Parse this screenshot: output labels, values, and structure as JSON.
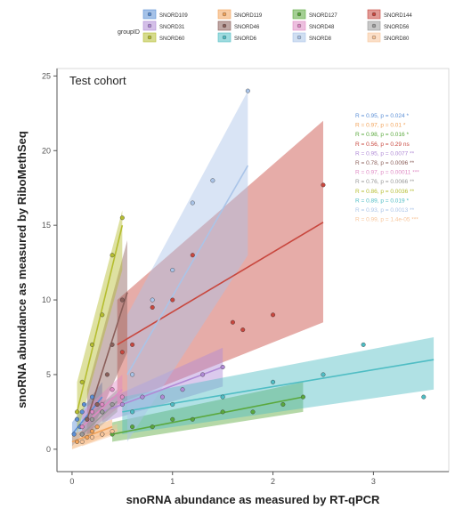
{
  "chart_data": {
    "type": "scatter",
    "annotation": "Test cohort",
    "xlabel": "snoRNA abundance as measured by RT-qPCR",
    "ylabel": "snoRNA abundance as measured by RiboMethSeq",
    "xlim": [
      -0.15,
      3.75
    ],
    "ylim": [
      -1.5,
      25.5
    ],
    "xticks": [
      0,
      1,
      2,
      3
    ],
    "yticks": [
      0,
      5,
      10,
      15,
      20,
      25
    ],
    "grid": false,
    "legend": {
      "title": "groupID",
      "position": "top"
    },
    "series": [
      {
        "name": "SNORD109",
        "color": "#5b8fd6",
        "x": [
          0.02,
          0.05,
          0.08,
          0.1,
          0.12,
          0.15,
          0.2,
          0.25
        ],
        "y": [
          1.0,
          2.0,
          1.5,
          2.5,
          3.0,
          2.0,
          3.5,
          3.0
        ],
        "fit": {
          "x": [
            0.0,
            0.3
          ],
          "y": [
            1.0,
            3.5
          ],
          "lo": [
            0.2,
            2.5
          ],
          "hi": [
            1.8,
            4.5
          ]
        },
        "stat": "R = 0.95, p = 0.024 *"
      },
      {
        "name": "SNORD119",
        "color": "#f2a35a",
        "x": [
          0.05,
          0.1,
          0.15,
          0.2,
          0.25,
          0.3
        ],
        "y": [
          0.5,
          1.0,
          0.8,
          1.2,
          1.5,
          1.0
        ],
        "fit": {
          "x": [
            0.0,
            0.4
          ],
          "y": [
            0.5,
            1.5
          ],
          "lo": [
            0.0,
            1.0
          ],
          "hi": [
            1.0,
            2.0
          ]
        },
        "stat": "R = 0.97, p = 0.01 *"
      },
      {
        "name": "SNORD127",
        "color": "#5aa83c",
        "x": [
          0.4,
          0.6,
          0.8,
          1.0,
          1.2,
          1.5,
          1.8,
          2.1,
          2.3
        ],
        "y": [
          1.0,
          1.5,
          1.5,
          2.0,
          2.0,
          2.5,
          2.5,
          3.0,
          3.5
        ],
        "fit": {
          "x": [
            0.4,
            2.3
          ],
          "y": [
            1.0,
            3.5
          ],
          "lo": [
            0.5,
            2.5
          ],
          "hi": [
            1.8,
            4.5
          ]
        },
        "stat": "R = 0.98, p = 0.016 *"
      },
      {
        "name": "SNORD144",
        "color": "#c8473e",
        "x": [
          0.5,
          0.6,
          0.8,
          1.0,
          1.2,
          1.6,
          1.7,
          2.0,
          2.5
        ],
        "y": [
          6.5,
          7.0,
          9.5,
          10.0,
          13.0,
          8.5,
          8.0,
          9.0,
          17.7
        ],
        "fit": {
          "x": [
            0.45,
            2.5
          ],
          "y": [
            7.0,
            15.2
          ],
          "lo": [
            3.0,
            8.5
          ],
          "hi": [
            10.0,
            22.0
          ]
        },
        "stat": "R = 0.56, p = 0.29 ns"
      },
      {
        "name": "SNORD31",
        "color": "#b08ad6",
        "x": [
          0.3,
          0.5,
          0.7,
          0.9,
          1.1,
          1.3,
          1.5
        ],
        "y": [
          2.5,
          3.0,
          3.5,
          3.5,
          4.0,
          5.0,
          5.5
        ],
        "fit": {
          "x": [
            0.3,
            1.5
          ],
          "y": [
            2.5,
            5.5
          ],
          "lo": [
            1.8,
            4.2
          ],
          "hi": [
            3.2,
            6.8
          ]
        },
        "stat": "R = 0.95, p = 0.0077 **"
      },
      {
        "name": "SNORD46",
        "color": "#8b5f5a",
        "x": [
          0.15,
          0.25,
          0.35,
          0.4,
          0.5
        ],
        "y": [
          2.0,
          3.0,
          5.0,
          7.0,
          10.0
        ],
        "fit": {
          "x": [
            0.15,
            0.55
          ],
          "y": [
            2.0,
            10.5
          ],
          "lo": [
            0.5,
            6.5
          ],
          "hi": [
            4.0,
            14.0
          ]
        },
        "stat": "R = 0.78, p = 0.0096 **"
      },
      {
        "name": "SNORD48",
        "color": "#df8ac4",
        "x": [
          0.1,
          0.2,
          0.3,
          0.4,
          0.5
        ],
        "y": [
          1.5,
          2.5,
          3.0,
          4.0,
          3.5
        ],
        "fit": {
          "x": [
            0.1,
            0.5
          ],
          "y": [
            1.5,
            4.0
          ],
          "lo": [
            0.8,
            3.0
          ],
          "hi": [
            2.5,
            5.0
          ]
        },
        "stat": "R = 0.97, p = 0.00011 ***"
      },
      {
        "name": "SNORD56",
        "color": "#9a9a9a",
        "x": [
          0.1,
          0.2,
          0.3,
          0.4
        ],
        "y": [
          1.0,
          2.0,
          2.5,
          3.0
        ],
        "fit": {
          "x": [
            0.1,
            0.45
          ],
          "y": [
            1.0,
            3.2
          ],
          "lo": [
            0.5,
            2.5
          ],
          "hi": [
            1.8,
            4.0
          ]
        },
        "stat": "R = 0.76, p = 0.0066 **"
      },
      {
        "name": "SNORD60",
        "color": "#b5bd2f",
        "x": [
          0.05,
          0.1,
          0.2,
          0.3,
          0.4,
          0.5
        ],
        "y": [
          2.5,
          4.5,
          7.0,
          9.0,
          13.0,
          15.5
        ],
        "fit": {
          "x": [
            0.05,
            0.5
          ],
          "y": [
            2.5,
            15.0
          ],
          "lo": [
            1.0,
            12.0
          ],
          "hi": [
            4.5,
            16.0
          ]
        },
        "stat": "R = 0.86, p = 0.0036 **"
      },
      {
        "name": "SNORD6",
        "color": "#4fbdc4",
        "x": [
          0.6,
          1.0,
          1.5,
          2.0,
          2.5,
          2.9,
          3.5
        ],
        "y": [
          2.5,
          3.0,
          3.5,
          4.5,
          5.0,
          7.0,
          3.5
        ],
        "fit": {
          "x": [
            0.5,
            3.6
          ],
          "y": [
            2.5,
            6.0
          ],
          "lo": [
            1.0,
            4.0
          ],
          "hi": [
            3.5,
            7.5
          ]
        },
        "stat": "R = 0.89, p = 0.019 *"
      },
      {
        "name": "SNORD8",
        "color": "#aac4e8",
        "x": [
          0.6,
          0.8,
          1.0,
          1.2,
          1.4,
          1.75
        ],
        "y": [
          5.0,
          10.0,
          12.0,
          16.5,
          18.0,
          24.0
        ],
        "fit": {
          "x": [
            0.55,
            1.75
          ],
          "y": [
            5.0,
            19.0
          ],
          "lo": [
            0.5,
            13.0
          ],
          "hi": [
            9.0,
            24.0
          ]
        },
        "stat": "R = 0.93, p = 0.0013 **"
      },
      {
        "name": "SNORD80",
        "color": "#f8c59a",
        "x": [
          0.1,
          0.2,
          0.3,
          0.4
        ],
        "y": [
          0.5,
          0.8,
          1.0,
          1.2
        ],
        "fit": {
          "x": [
            0.1,
            0.45
          ],
          "y": [
            0.5,
            1.3
          ],
          "lo": [
            0.2,
            1.0
          ],
          "hi": [
            0.9,
            1.7
          ]
        },
        "stat": "R = 0.99, p = 1.4e-05 ***"
      }
    ]
  }
}
